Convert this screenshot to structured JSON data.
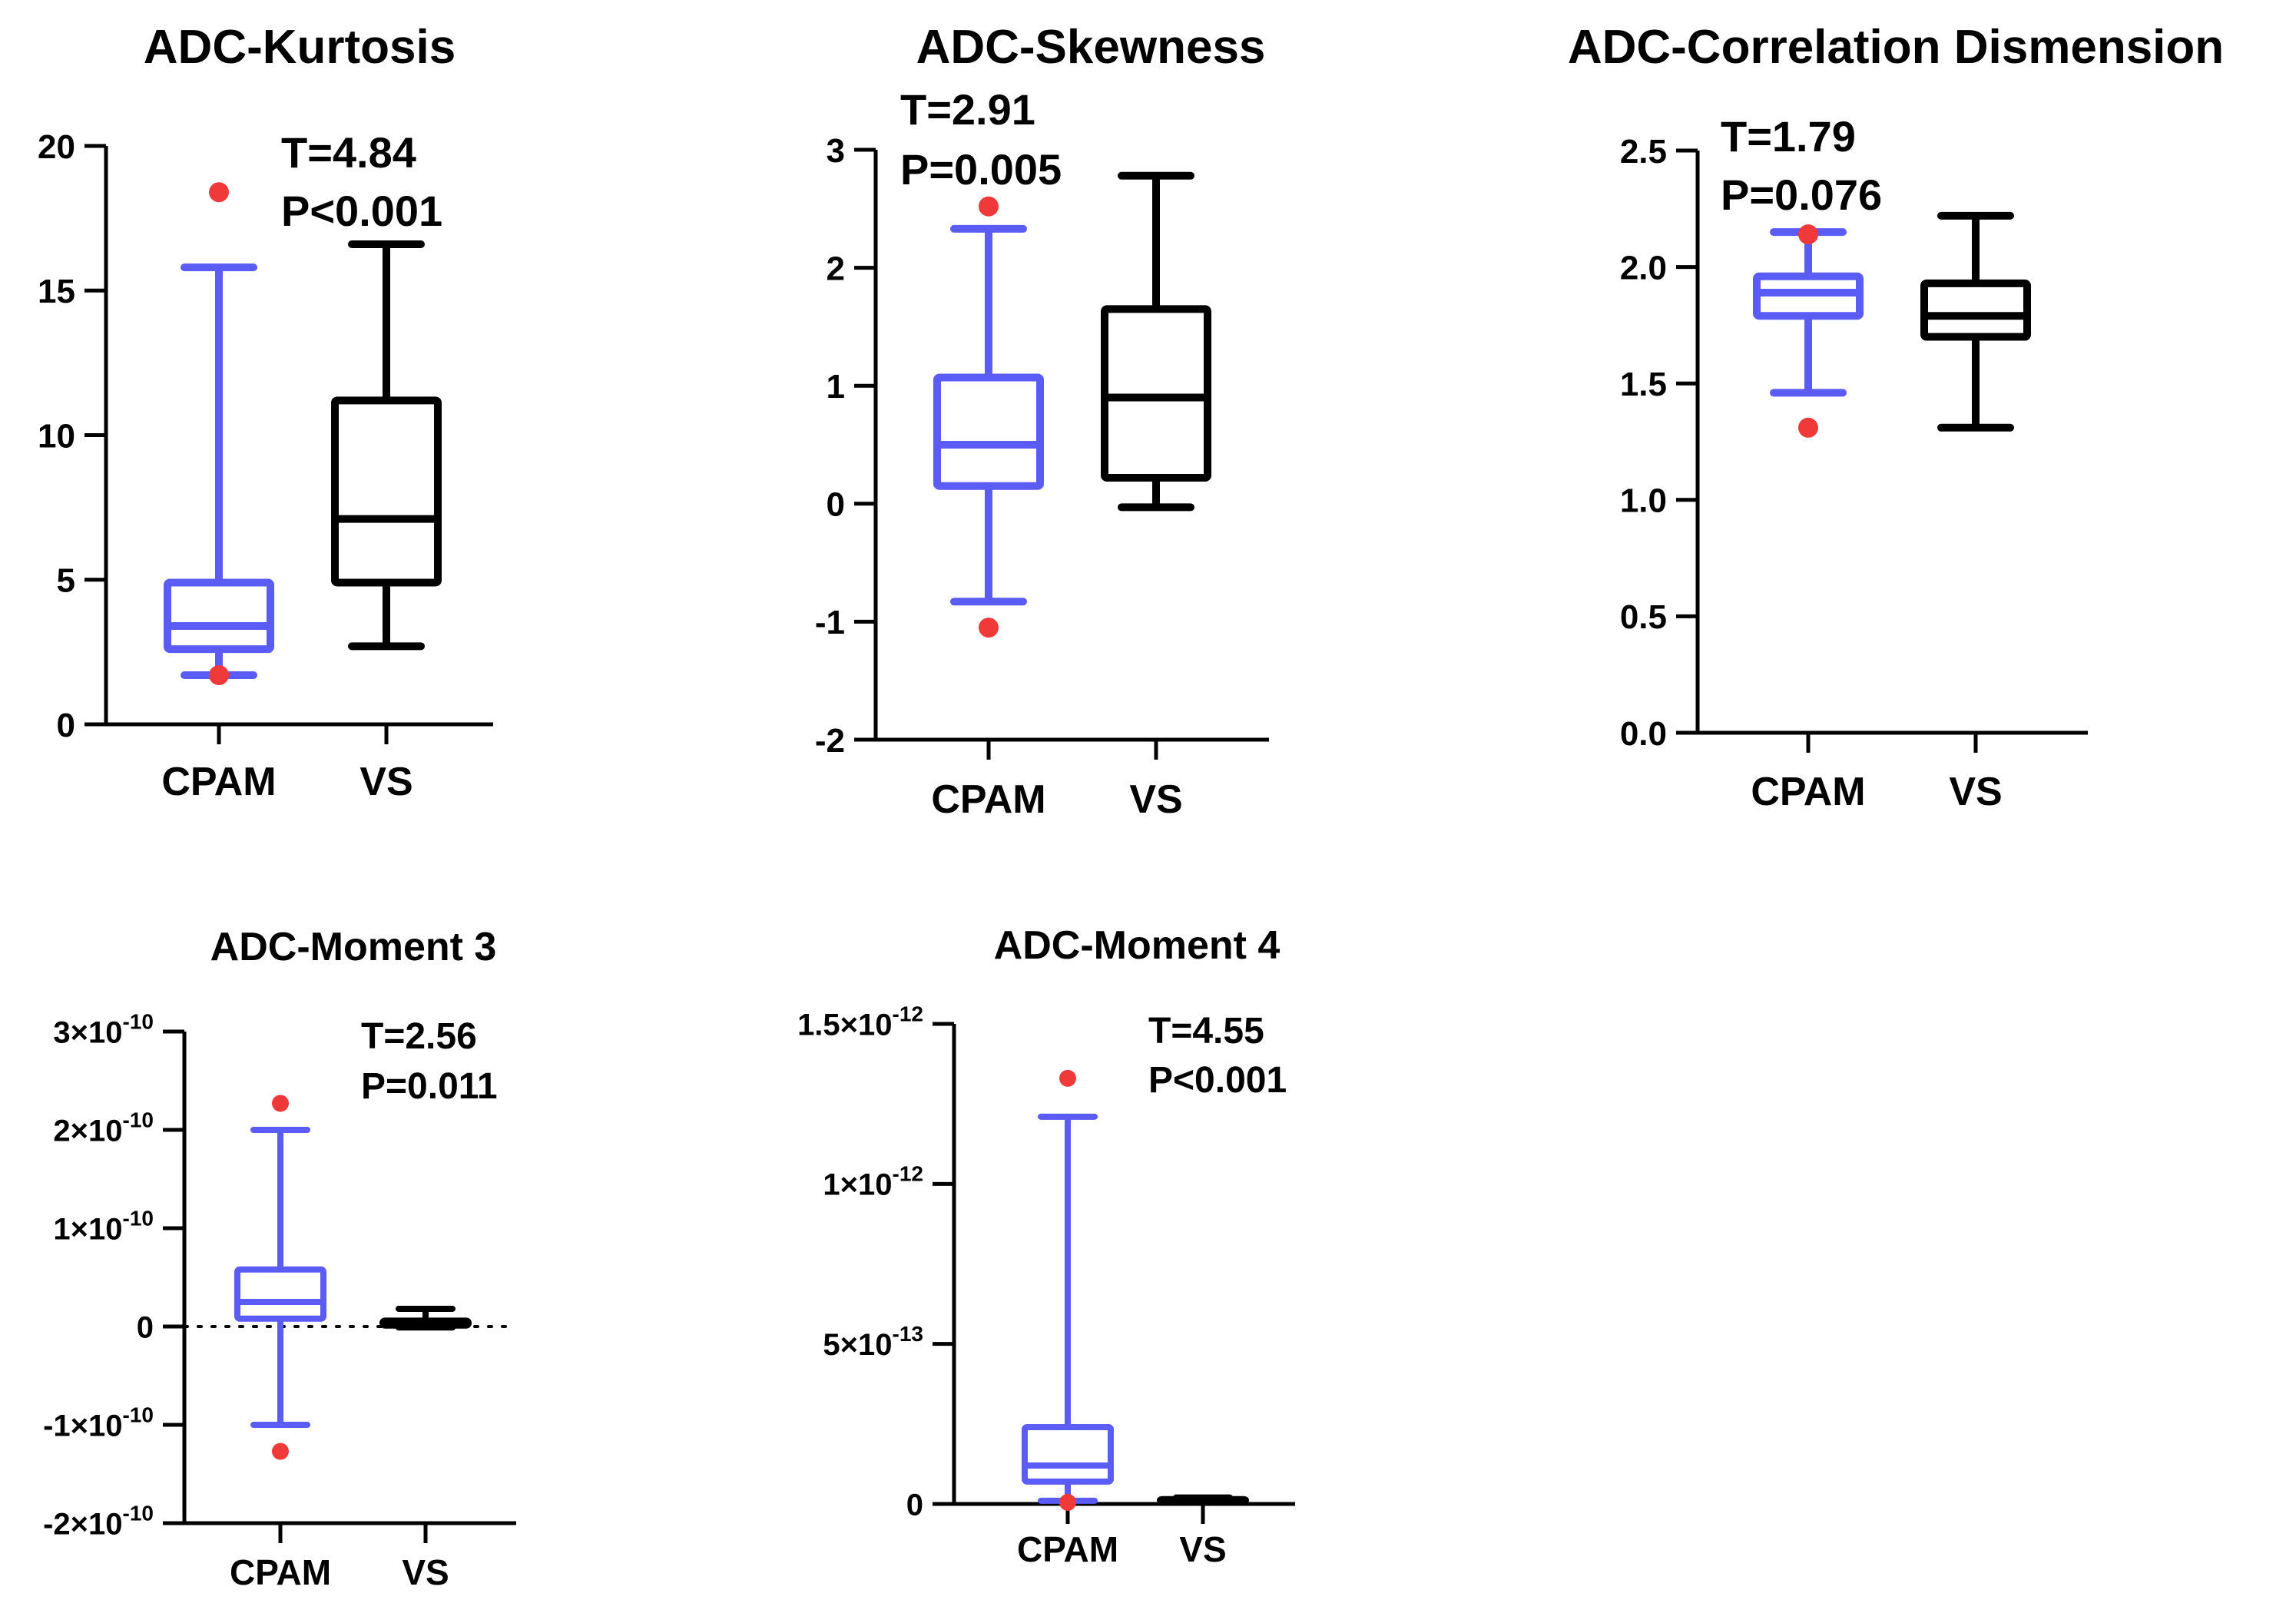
{
  "colors": {
    "cpam": "#5b5bf5",
    "vs": "#000000",
    "outlier": "#f03a3a",
    "axis": "#000000"
  },
  "chart_data": [
    {
      "type": "box",
      "title": "ADC-Kurtosis",
      "categories": [
        "CPAM",
        "VS"
      ],
      "ylim": [
        0,
        20
      ],
      "yticks": [
        0,
        5,
        10,
        15,
        20
      ],
      "ytick_labels": [
        "0",
        "5",
        "10",
        "15",
        "20"
      ],
      "annotation": [
        "T=4.84",
        "P<0.001"
      ],
      "zero_line": false,
      "series": [
        {
          "name": "CPAM",
          "min": 1.7,
          "q1": 2.6,
          "median": 3.4,
          "q3": 4.9,
          "max": 15.8,
          "outliers": [
            18.4,
            1.7
          ]
        },
        {
          "name": "VS",
          "min": 2.7,
          "q1": 4.9,
          "median": 7.1,
          "q3": 11.2,
          "max": 16.6,
          "outliers": []
        }
      ]
    },
    {
      "type": "box",
      "title": "ADC-Skewness",
      "categories": [
        "CPAM",
        "VS"
      ],
      "ylim": [
        -2,
        3
      ],
      "yticks": [
        -2,
        -1,
        0,
        1,
        2,
        3
      ],
      "ytick_labels": [
        "-2",
        "-1",
        "0",
        "1",
        "2",
        "3"
      ],
      "annotation": [
        "T=2.91",
        "P=0.005"
      ],
      "zero_line": false,
      "series": [
        {
          "name": "CPAM",
          "min": -0.83,
          "q1": 0.15,
          "median": 0.5,
          "q3": 1.07,
          "max": 2.33,
          "outliers": [
            2.52,
            -1.05
          ]
        },
        {
          "name": "VS",
          "min": -0.03,
          "q1": 0.22,
          "median": 0.9,
          "q3": 1.65,
          "max": 2.78,
          "outliers": []
        }
      ]
    },
    {
      "type": "box",
      "title": "ADC-Correlation Dismension",
      "categories": [
        "CPAM",
        "VS"
      ],
      "ylim": [
        0,
        2.5
      ],
      "yticks": [
        0,
        0.5,
        1.0,
        1.5,
        2.0,
        2.5
      ],
      "ytick_labels": [
        "0.0",
        "0.5",
        "1.0",
        "1.5",
        "2.0",
        "2.5"
      ],
      "annotation": [
        "T=1.79",
        "P=0.076"
      ],
      "zero_line": false,
      "series": [
        {
          "name": "CPAM",
          "min": 1.46,
          "q1": 1.79,
          "median": 1.89,
          "q3": 1.96,
          "max": 2.15,
          "outliers": [
            2.14,
            1.31
          ]
        },
        {
          "name": "VS",
          "min": 1.31,
          "q1": 1.7,
          "median": 1.79,
          "q3": 1.93,
          "max": 2.22,
          "outliers": []
        }
      ]
    },
    {
      "type": "box",
      "title": "ADC-Moment 3",
      "categories": [
        "CPAM",
        "VS"
      ],
      "ylim": [
        -2e-10,
        3e-10
      ],
      "yticks": [
        -2e-10,
        -1e-10,
        0,
        1e-10,
        2e-10,
        3e-10
      ],
      "ytick_labels": [
        {
          "m": "-2×10",
          "e": "-10"
        },
        {
          "m": "-1×10",
          "e": "-10"
        },
        {
          "m": "0",
          "e": ""
        },
        {
          "m": "1×10",
          "e": "-10"
        },
        {
          "m": "2×10",
          "e": "-10"
        },
        {
          "m": "3×10",
          "e": "-10"
        }
      ],
      "annotation": [
        "T=2.56",
        "P=0.011"
      ],
      "zero_line": true,
      "series": [
        {
          "name": "CPAM",
          "min": -1e-10,
          "q1": 8e-12,
          "median": 2.5e-11,
          "q3": 5.8e-11,
          "max": 2e-10,
          "outliers": [
            2.27e-10,
            -1.27e-10
          ]
        },
        {
          "name": "VS",
          "min": -1e-12,
          "q1": 1e-12,
          "median": 4e-12,
          "q3": 6e-12,
          "max": 1.8e-11,
          "outliers": []
        }
      ]
    },
    {
      "type": "box",
      "title": "ADC-Moment 4",
      "categories": [
        "CPAM",
        "VS"
      ],
      "ylim": [
        0,
        1.5e-12
      ],
      "yticks": [
        0,
        5e-13,
        1e-12,
        1.5e-12
      ],
      "ytick_labels": [
        {
          "m": "0",
          "e": ""
        },
        {
          "m": "5×10",
          "e": "-13"
        },
        {
          "m": "1×10",
          "e": "-12"
        },
        {
          "m": "1.5×10",
          "e": "-12"
        }
      ],
      "annotation": [
        "T=4.55",
        "P<0.001"
      ],
      "zero_line": false,
      "series": [
        {
          "name": "CPAM",
          "min": 1e-14,
          "q1": 7e-14,
          "median": 1.2e-13,
          "q3": 2.4e-13,
          "max": 1.21e-12,
          "outliers": [
            1.33e-12,
            5e-15
          ]
        },
        {
          "name": "VS",
          "min": 5e-15,
          "q1": 8e-15,
          "median": 1e-14,
          "q3": 1.5e-14,
          "max": 2e-14,
          "outliers": []
        }
      ]
    }
  ]
}
